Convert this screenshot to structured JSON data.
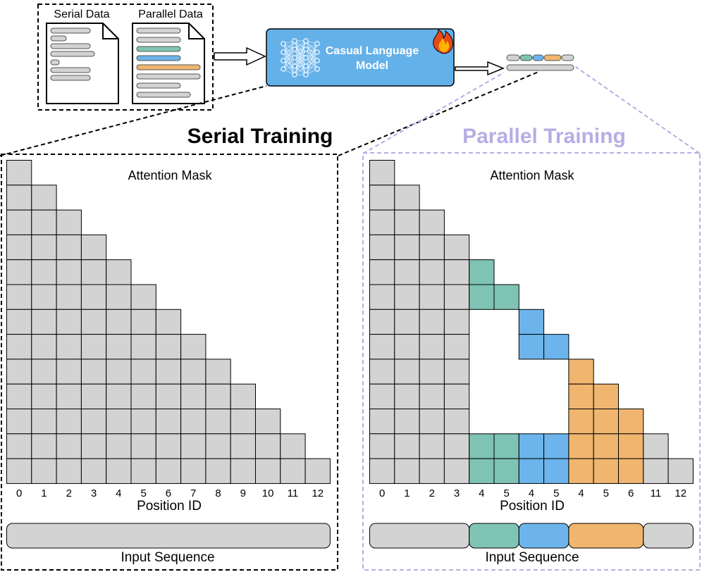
{
  "colors": {
    "gray": "#d3d3d3",
    "teal": "#7fc3b4",
    "blue": "#6cb4eb",
    "orange": "#f0b56f",
    "model_blue": "#64b1ea",
    "parallel_label": "#b4aee6"
  },
  "top": {
    "serial_data_label": "Serial Data",
    "parallel_data_label": "Parallel Data",
    "model_label_line1": "Casual Language",
    "model_label_line2": "Model",
    "model_icon": "neural-network-icon",
    "fire_icon": "fire-icon"
  },
  "serial": {
    "title": "Serial Training",
    "mask_label": "Attention Mask",
    "position_label": "Position ID",
    "position_ids": [
      "0",
      "1",
      "2",
      "3",
      "4",
      "5",
      "6",
      "7",
      "8",
      "9",
      "10",
      "11",
      "12"
    ],
    "input_label": "Input Sequence",
    "segments": [
      "gray"
    ]
  },
  "parallel": {
    "title": "Parallel Training",
    "mask_label": "Attention Mask",
    "position_label": "Position ID",
    "position_ids": [
      "0",
      "1",
      "2",
      "3",
      "4",
      "5",
      "4",
      "5",
      "4",
      "5",
      "6",
      "11",
      "12"
    ],
    "input_label": "Input Sequence",
    "segments": [
      "gray",
      "teal",
      "blue",
      "orange",
      "gray"
    ],
    "segment_spans": [
      [
        0,
        3
      ],
      [
        4,
        5
      ],
      [
        6,
        7
      ],
      [
        8,
        10
      ],
      [
        11,
        12
      ]
    ]
  }
}
